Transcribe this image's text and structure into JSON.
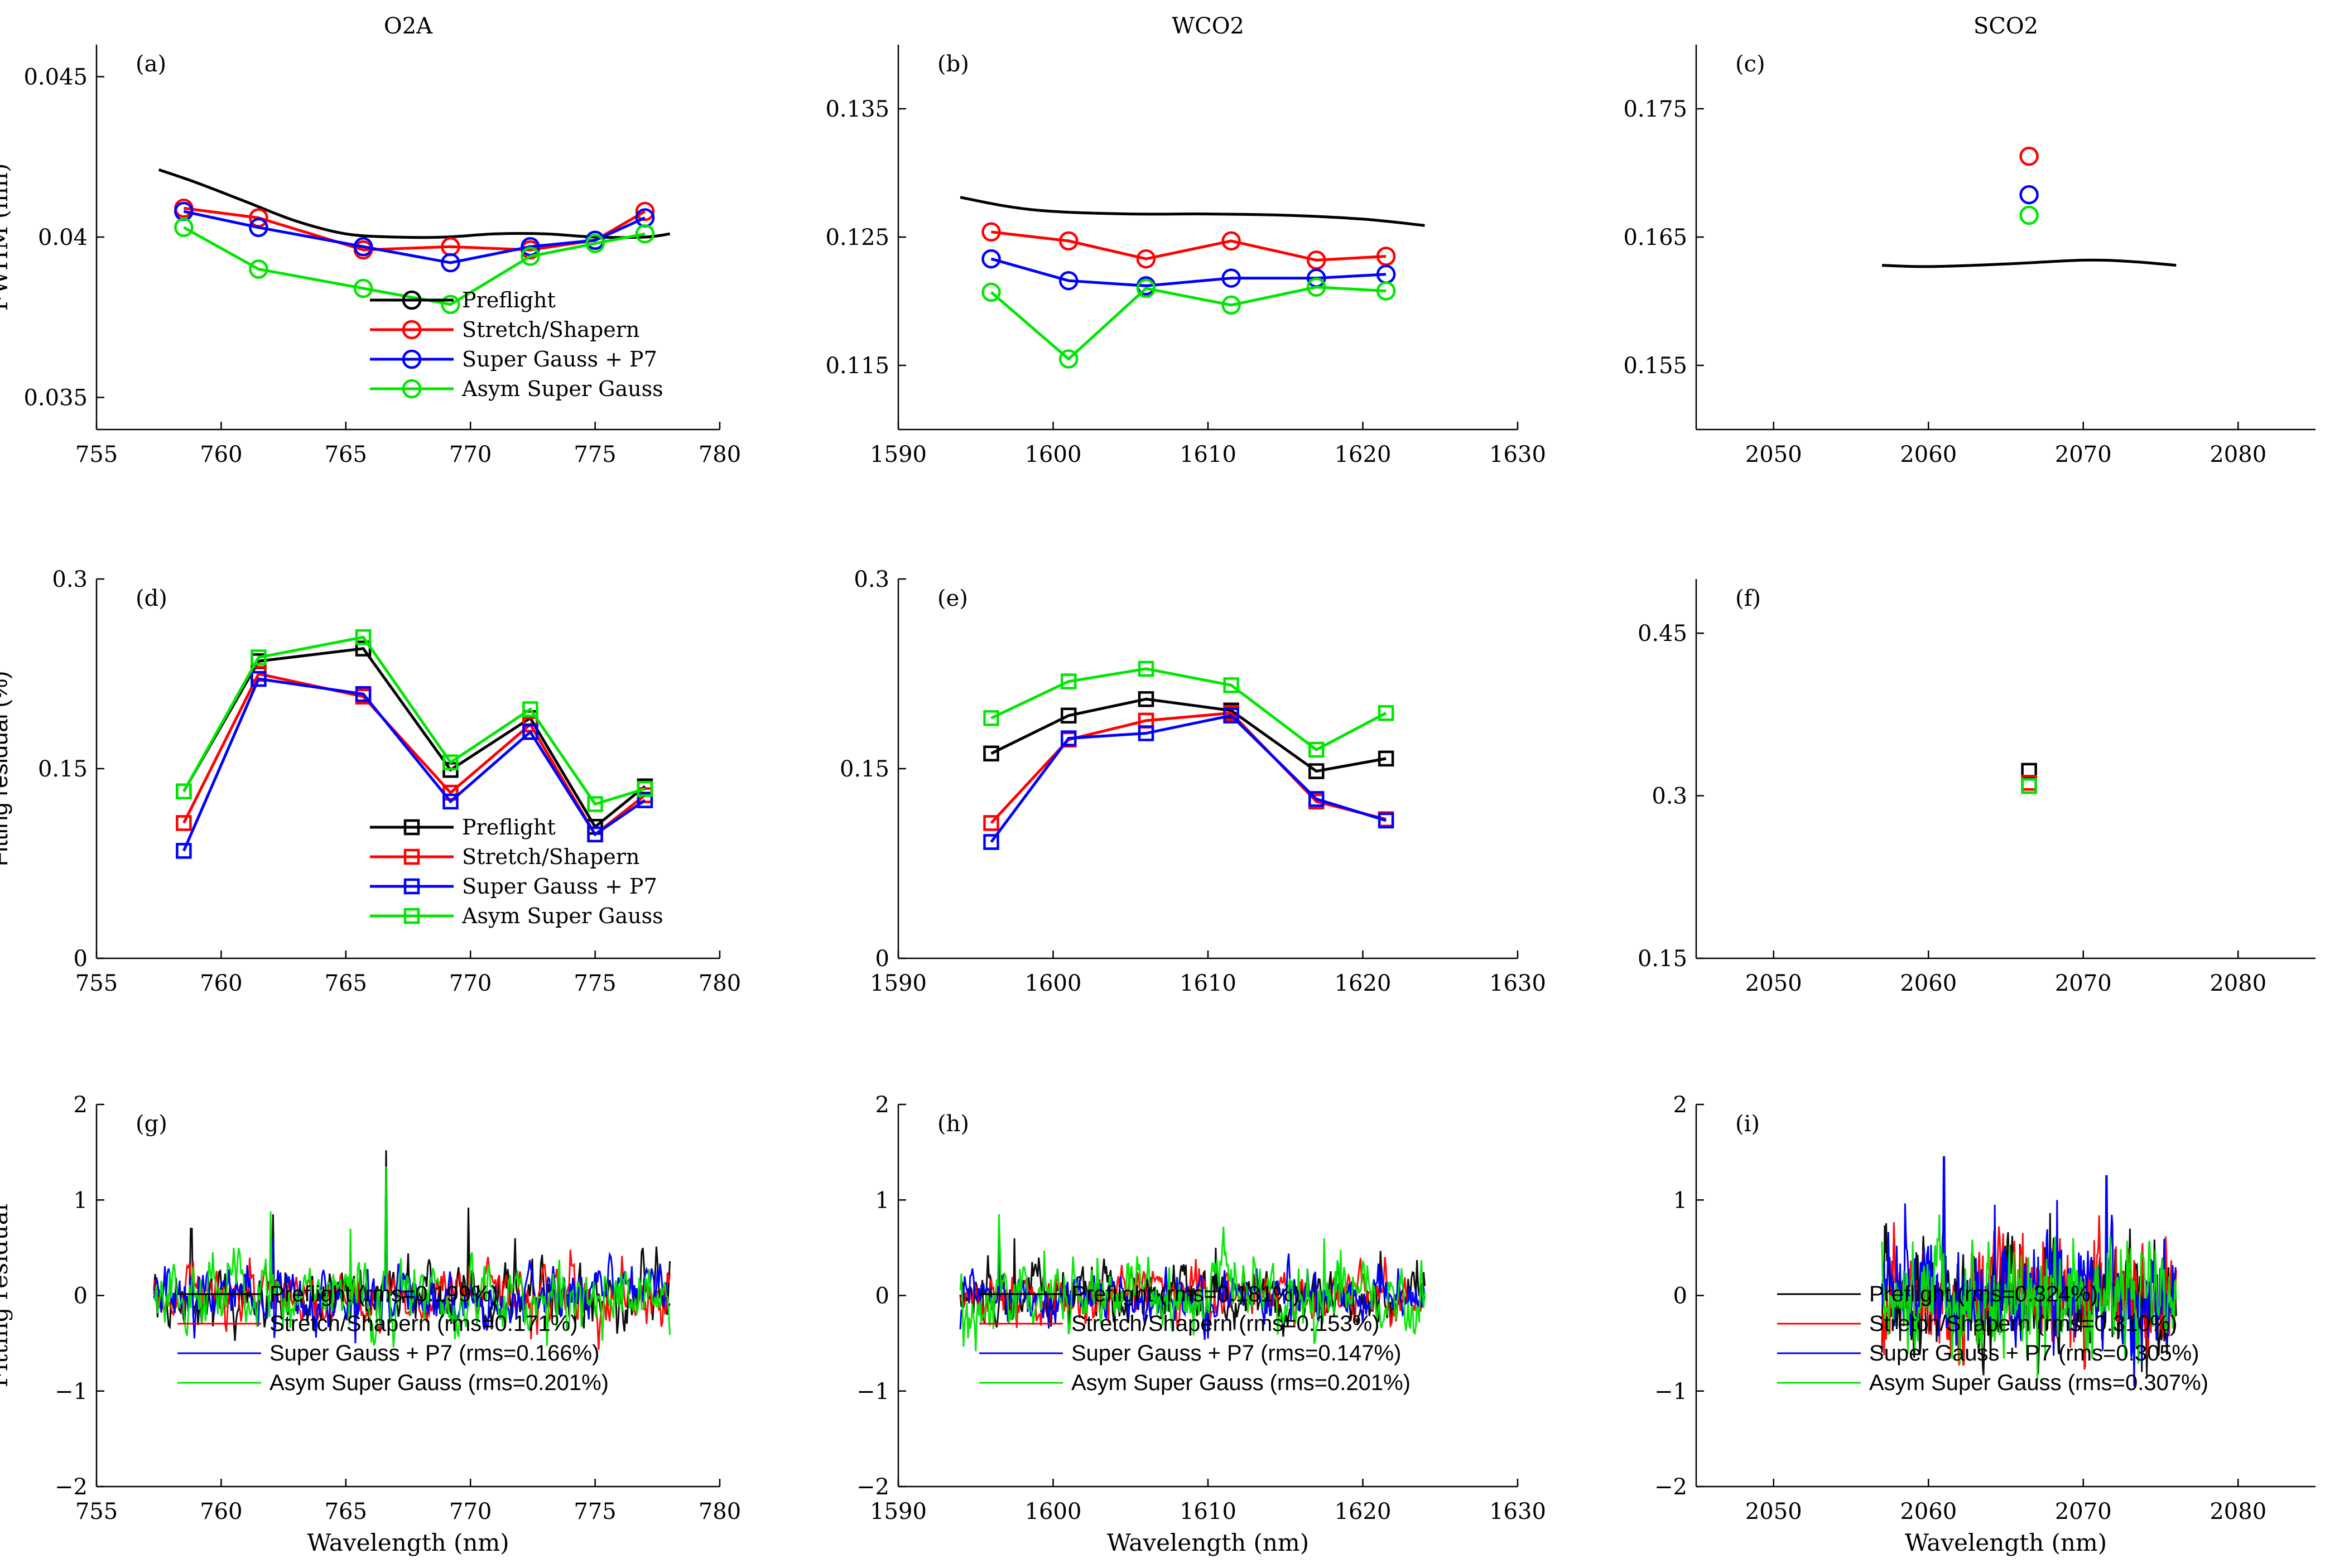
{
  "columns": [
    "O2A",
    "WCO2",
    "SCO2"
  ],
  "colors": {
    "Preflight": "#000000",
    "Stretch/Shapern": "#ff0000",
    "Super Gauss + P7": "#0000ff",
    "Asym Super Gauss": "#00e600"
  },
  "chart_data": [
    {
      "id": "a",
      "panel_label": "(a)",
      "type": "line",
      "markers": "circle",
      "column_title": "O2A",
      "ylabel": "FWHM (nm)",
      "xlabel": "",
      "xlim": [
        755,
        780
      ],
      "ylim": [
        0.034,
        0.046
      ],
      "xticks": [
        "755",
        "760",
        "765",
        "770",
        "775",
        "780"
      ],
      "yticks": [
        "0.035",
        "0.04",
        "0.045"
      ],
      "legend": [
        "Preflight",
        "Stretch/Shapern",
        "Super Gauss + P7",
        "Asym Super Gauss"
      ],
      "series": [
        {
          "name": "Preflight",
          "style": "curve",
          "x": [
            757.5,
            759,
            761,
            763,
            765,
            767,
            769,
            771,
            773,
            775,
            777,
            778
          ],
          "y": [
            0.0421,
            0.0417,
            0.0411,
            0.0405,
            0.0401,
            0.04,
            0.04,
            0.0401,
            0.0401,
            0.04,
            0.04,
            0.0401
          ]
        },
        {
          "name": "Stretch/Shapern",
          "x": [
            758.5,
            761.5,
            765.7,
            769.2,
            772.4,
            775,
            777
          ],
          "y": [
            0.0409,
            0.0406,
            0.0396,
            0.0397,
            0.0396,
            0.0399,
            0.0408
          ]
        },
        {
          "name": "Super Gauss + P7",
          "x": [
            758.5,
            761.5,
            765.7,
            769.2,
            772.4,
            775,
            777
          ],
          "y": [
            0.0408,
            0.0403,
            0.0397,
            0.0392,
            0.0397,
            0.0399,
            0.0406
          ]
        },
        {
          "name": "Asym Super Gauss",
          "x": [
            758.5,
            761.5,
            765.7,
            769.2,
            772.4,
            775,
            777
          ],
          "y": [
            0.0403,
            0.039,
            0.0384,
            0.0379,
            0.0394,
            0.0398,
            0.0401
          ]
        }
      ]
    },
    {
      "id": "b",
      "panel_label": "(b)",
      "type": "line",
      "markers": "circle",
      "column_title": "WCO2",
      "ylabel": "",
      "xlabel": "",
      "xlim": [
        1590,
        1630
      ],
      "ylim": [
        0.11,
        0.14
      ],
      "xticks": [
        "1590",
        "1600",
        "1610",
        "1620",
        "1630"
      ],
      "yticks": [
        "0.115",
        "0.125",
        "0.135"
      ],
      "legend": [],
      "series": [
        {
          "name": "Preflight",
          "style": "curve",
          "x": [
            1594,
            1597,
            1600,
            1605,
            1610,
            1615,
            1620,
            1624
          ],
          "y": [
            0.1281,
            0.1274,
            0.127,
            0.1268,
            0.1268,
            0.1267,
            0.1264,
            0.1259
          ]
        },
        {
          "name": "Stretch/Shapern",
          "x": [
            1596,
            1601,
            1606,
            1611.5,
            1617,
            1621.5
          ],
          "y": [
            0.1254,
            0.1247,
            0.1233,
            0.1247,
            0.1232,
            0.1235
          ]
        },
        {
          "name": "Super Gauss + P7",
          "x": [
            1596,
            1601,
            1606,
            1611.5,
            1617,
            1621.5
          ],
          "y": [
            0.1233,
            0.1216,
            0.1212,
            0.1218,
            0.1218,
            0.1221
          ]
        },
        {
          "name": "Asym Super Gauss",
          "x": [
            1596,
            1601,
            1606,
            1611.5,
            1617,
            1621.5
          ],
          "y": [
            0.1207,
            0.1155,
            0.121,
            0.1197,
            0.1211,
            0.1208
          ]
        }
      ]
    },
    {
      "id": "c",
      "panel_label": "(c)",
      "type": "scatter",
      "markers": "circle",
      "column_title": "SCO2",
      "ylabel": "",
      "xlabel": "",
      "xlim": [
        2045,
        2085
      ],
      "ylim": [
        0.15,
        0.18
      ],
      "xticks": [
        "2050",
        "2060",
        "2070",
        "2080"
      ],
      "yticks": [
        "0.155",
        "0.165",
        "0.175"
      ],
      "legend": [],
      "series": [
        {
          "name": "Preflight",
          "style": "curve",
          "x": [
            2057,
            2060,
            2065,
            2070,
            2073,
            2076
          ],
          "y": [
            0.1628,
            0.1627,
            0.1629,
            0.1632,
            0.1631,
            0.1628
          ]
        },
        {
          "name": "Stretch/Shapern",
          "x": [
            2066.5
          ],
          "y": [
            0.1713
          ]
        },
        {
          "name": "Super Gauss + P7",
          "x": [
            2066.5
          ],
          "y": [
            0.1683
          ]
        },
        {
          "name": "Asym Super Gauss",
          "x": [
            2066.5
          ],
          "y": [
            0.1667
          ]
        }
      ]
    },
    {
      "id": "d",
      "panel_label": "(d)",
      "type": "line",
      "markers": "square",
      "column_title": "",
      "ylabel": "Fitting residual (%)",
      "xlabel": "",
      "xlim": [
        755,
        780
      ],
      "ylim": [
        0,
        0.3
      ],
      "xticks": [
        "755",
        "760",
        "765",
        "770",
        "775",
        "780"
      ],
      "yticks": [
        "0",
        "0.15",
        "0.3"
      ],
      "legend": [
        "Preflight",
        "Stretch/Shapern",
        "Super Gauss + P7",
        "Asym Super Gauss"
      ],
      "series": [
        {
          "name": "Preflight",
          "x": [
            758.5,
            761.5,
            765.7,
            769.2,
            772.4,
            775,
            777
          ],
          "y": [
            0.132,
            0.235,
            0.245,
            0.149,
            0.19,
            0.104,
            0.136
          ]
        },
        {
          "name": "Stretch/Shapern",
          "x": [
            758.5,
            761.5,
            765.7,
            769.2,
            772.4,
            775,
            777
          ],
          "y": [
            0.107,
            0.225,
            0.207,
            0.131,
            0.185,
            0.098,
            0.129
          ]
        },
        {
          "name": "Super Gauss + P7",
          "x": [
            758.5,
            761.5,
            765.7,
            769.2,
            772.4,
            775,
            777
          ],
          "y": [
            0.085,
            0.221,
            0.209,
            0.124,
            0.179,
            0.098,
            0.125
          ]
        },
        {
          "name": "Asym Super Gauss",
          "x": [
            758.5,
            761.5,
            765.7,
            769.2,
            772.4,
            775,
            777
          ],
          "y": [
            0.132,
            0.238,
            0.254,
            0.155,
            0.197,
            0.122,
            0.134
          ]
        }
      ]
    },
    {
      "id": "e",
      "panel_label": "(e)",
      "type": "line",
      "markers": "square",
      "column_title": "",
      "ylabel": "",
      "xlabel": "",
      "xlim": [
        1590,
        1630
      ],
      "ylim": [
        0,
        0.3
      ],
      "xticks": [
        "1590",
        "1600",
        "1610",
        "1620",
        "1630"
      ],
      "yticks": [
        "0",
        "0.15",
        "0.3"
      ],
      "legend": [],
      "series": [
        {
          "name": "Preflight",
          "x": [
            1596,
            1601,
            1606,
            1611.5,
            1617,
            1621.5
          ],
          "y": [
            0.162,
            0.192,
            0.205,
            0.196,
            0.148,
            0.158
          ]
        },
        {
          "name": "Stretch/Shapern",
          "x": [
            1596,
            1601,
            1606,
            1611.5,
            1617,
            1621.5
          ],
          "y": [
            0.107,
            0.173,
            0.188,
            0.194,
            0.124,
            0.11
          ]
        },
        {
          "name": "Super Gauss + P7",
          "x": [
            1596,
            1601,
            1606,
            1611.5,
            1617,
            1621.5
          ],
          "y": [
            0.092,
            0.174,
            0.178,
            0.192,
            0.126,
            0.109
          ]
        },
        {
          "name": "Asym Super Gauss",
          "x": [
            1596,
            1601,
            1606,
            1611.5,
            1617,
            1621.5
          ],
          "y": [
            0.19,
            0.219,
            0.229,
            0.216,
            0.165,
            0.194
          ]
        }
      ]
    },
    {
      "id": "f",
      "panel_label": "(f)",
      "type": "scatter",
      "markers": "square",
      "column_title": "",
      "ylabel": "",
      "xlabel": "",
      "xlim": [
        2045,
        2085
      ],
      "ylim": [
        0.15,
        0.5
      ],
      "xticks": [
        "2050",
        "2060",
        "2070",
        "2080"
      ],
      "yticks": [
        "0.15",
        "0.3",
        "0.45"
      ],
      "legend": [],
      "series": [
        {
          "name": "Preflight",
          "x": [
            2066.5
          ],
          "y": [
            0.323
          ]
        },
        {
          "name": "Stretch/Shapern",
          "x": [
            2066.5
          ],
          "y": [
            0.312
          ]
        },
        {
          "name": "Super Gauss + P7",
          "x": [
            2066.5
          ],
          "y": [
            0.309
          ]
        },
        {
          "name": "Asym Super Gauss",
          "x": [
            2066.5
          ],
          "y": [
            0.309
          ]
        }
      ]
    },
    {
      "id": "g",
      "panel_label": "(g)",
      "type": "line",
      "markers": "none",
      "column_title": "",
      "ylabel": "Fitting residual",
      "xlabel": "Wavelength (nm)",
      "xlim": [
        755,
        780
      ],
      "ylim": [
        -2,
        2
      ],
      "xticks": [
        "755",
        "760",
        "765",
        "770",
        "775",
        "780"
      ],
      "yticks": [
        "-2",
        "-1",
        "0",
        "1",
        "2"
      ],
      "legend": [
        "Preflight (rms=0.199%)",
        "Stretch/Shapern (rms=0.171%)",
        "Super Gauss + P7 (rms=0.166%)",
        "Asym Super Gauss (rms=0.201%)"
      ],
      "x_range": [
        757.3,
        778
      ],
      "series": [
        {
          "name": "Preflight",
          "rms": 0.199,
          "spikes": [
            [
              758.8,
              0.7
            ],
            [
              762.1,
              0.85
            ],
            [
              766.6,
              1.52
            ],
            [
              769.9,
              0.92
            ],
            [
              771.8,
              0.6
            ],
            [
              775.9,
              -0.4
            ]
          ]
        },
        {
          "name": "Stretch/Shapern",
          "rms": 0.171,
          "spikes": [
            [
              762.1,
              0.6
            ],
            [
              766.6,
              1.25
            ]
          ]
        },
        {
          "name": "Super Gauss + P7",
          "rms": 0.166,
          "spikes": [
            [
              762.1,
              0.6
            ],
            [
              765.4,
              -0.5
            ],
            [
              766.6,
              1.1
            ]
          ]
        },
        {
          "name": "Asym Super Gauss",
          "rms": 0.201,
          "spikes": [
            [
              762.0,
              0.88
            ],
            [
              766.6,
              1.35
            ],
            [
              765.2,
              0.7
            ]
          ]
        }
      ]
    },
    {
      "id": "h",
      "panel_label": "(h)",
      "type": "line",
      "markers": "none",
      "column_title": "",
      "ylabel": "",
      "xlabel": "Wavelength (nm)",
      "xlim": [
        1590,
        1630
      ],
      "ylim": [
        -2,
        2
      ],
      "xticks": [
        "1590",
        "1600",
        "1610",
        "1620",
        "1630"
      ],
      "yticks": [
        "-2",
        "-1",
        "0",
        "1",
        "2"
      ],
      "legend": [
        "Preflight (rms=0.181%)",
        "Stretch/Shapern (rms=0.153%)",
        "Super Gauss + P7 (rms=0.147%)",
        "Asym Super Gauss (rms=0.201%)"
      ],
      "x_range": [
        1594,
        1624
      ],
      "series": [
        {
          "name": "Preflight",
          "rms": 0.181,
          "spikes": [
            [
              1597.5,
              0.6
            ],
            [
              1610.5,
              0.5
            ]
          ]
        },
        {
          "name": "Stretch/Shapern",
          "rms": 0.153,
          "spikes": []
        },
        {
          "name": "Super Gauss + P7",
          "rms": 0.147,
          "spikes": [
            [
              1596.5,
              0.6
            ],
            [
              1610.0,
              -0.45
            ]
          ]
        },
        {
          "name": "Asym Super Gauss",
          "rms": 0.201,
          "spikes": [
            [
              1596.5,
              0.85
            ],
            [
              1611.0,
              0.72
            ],
            [
              1617.5,
              0.6
            ]
          ]
        }
      ]
    },
    {
      "id": "i",
      "panel_label": "(i)",
      "type": "line",
      "markers": "none",
      "column_title": "",
      "ylabel": "",
      "xlabel": "Wavelength (nm)",
      "xlim": [
        2045,
        2085
      ],
      "ylim": [
        -2,
        2
      ],
      "xticks": [
        "2050",
        "2060",
        "2070",
        "2080"
      ],
      "yticks": [
        "-2",
        "-1",
        "0",
        "1",
        "2"
      ],
      "legend": [
        "Preflight (rms=0.324%)",
        "Stretch/Shapern (rms=0.310%)",
        "Super Gauss + P7 (rms=0.305%)",
        "Asym Super Gauss (rms=0.307%)"
      ],
      "x_range": [
        2057,
        2076
      ],
      "series": [
        {
          "name": "Preflight",
          "rms": 0.324,
          "spikes": [
            [
              2073.0,
              0.7
            ],
            [
              2073.8,
              -0.8
            ]
          ]
        },
        {
          "name": "Stretch/Shapern",
          "rms": 0.31,
          "spikes": [
            [
              2060.7,
              -0.5
            ]
          ]
        },
        {
          "name": "Super Gauss + P7",
          "rms": 0.305,
          "spikes": [
            [
              2061.0,
              1.45
            ],
            [
              2071.5,
              1.25
            ],
            [
              2068.3,
              1.0
            ],
            [
              2064.3,
              0.95
            ],
            [
              2073.3,
              -0.95
            ]
          ]
        },
        {
          "name": "Asym Super Gauss",
          "rms": 0.307,
          "spikes": []
        }
      ]
    }
  ]
}
